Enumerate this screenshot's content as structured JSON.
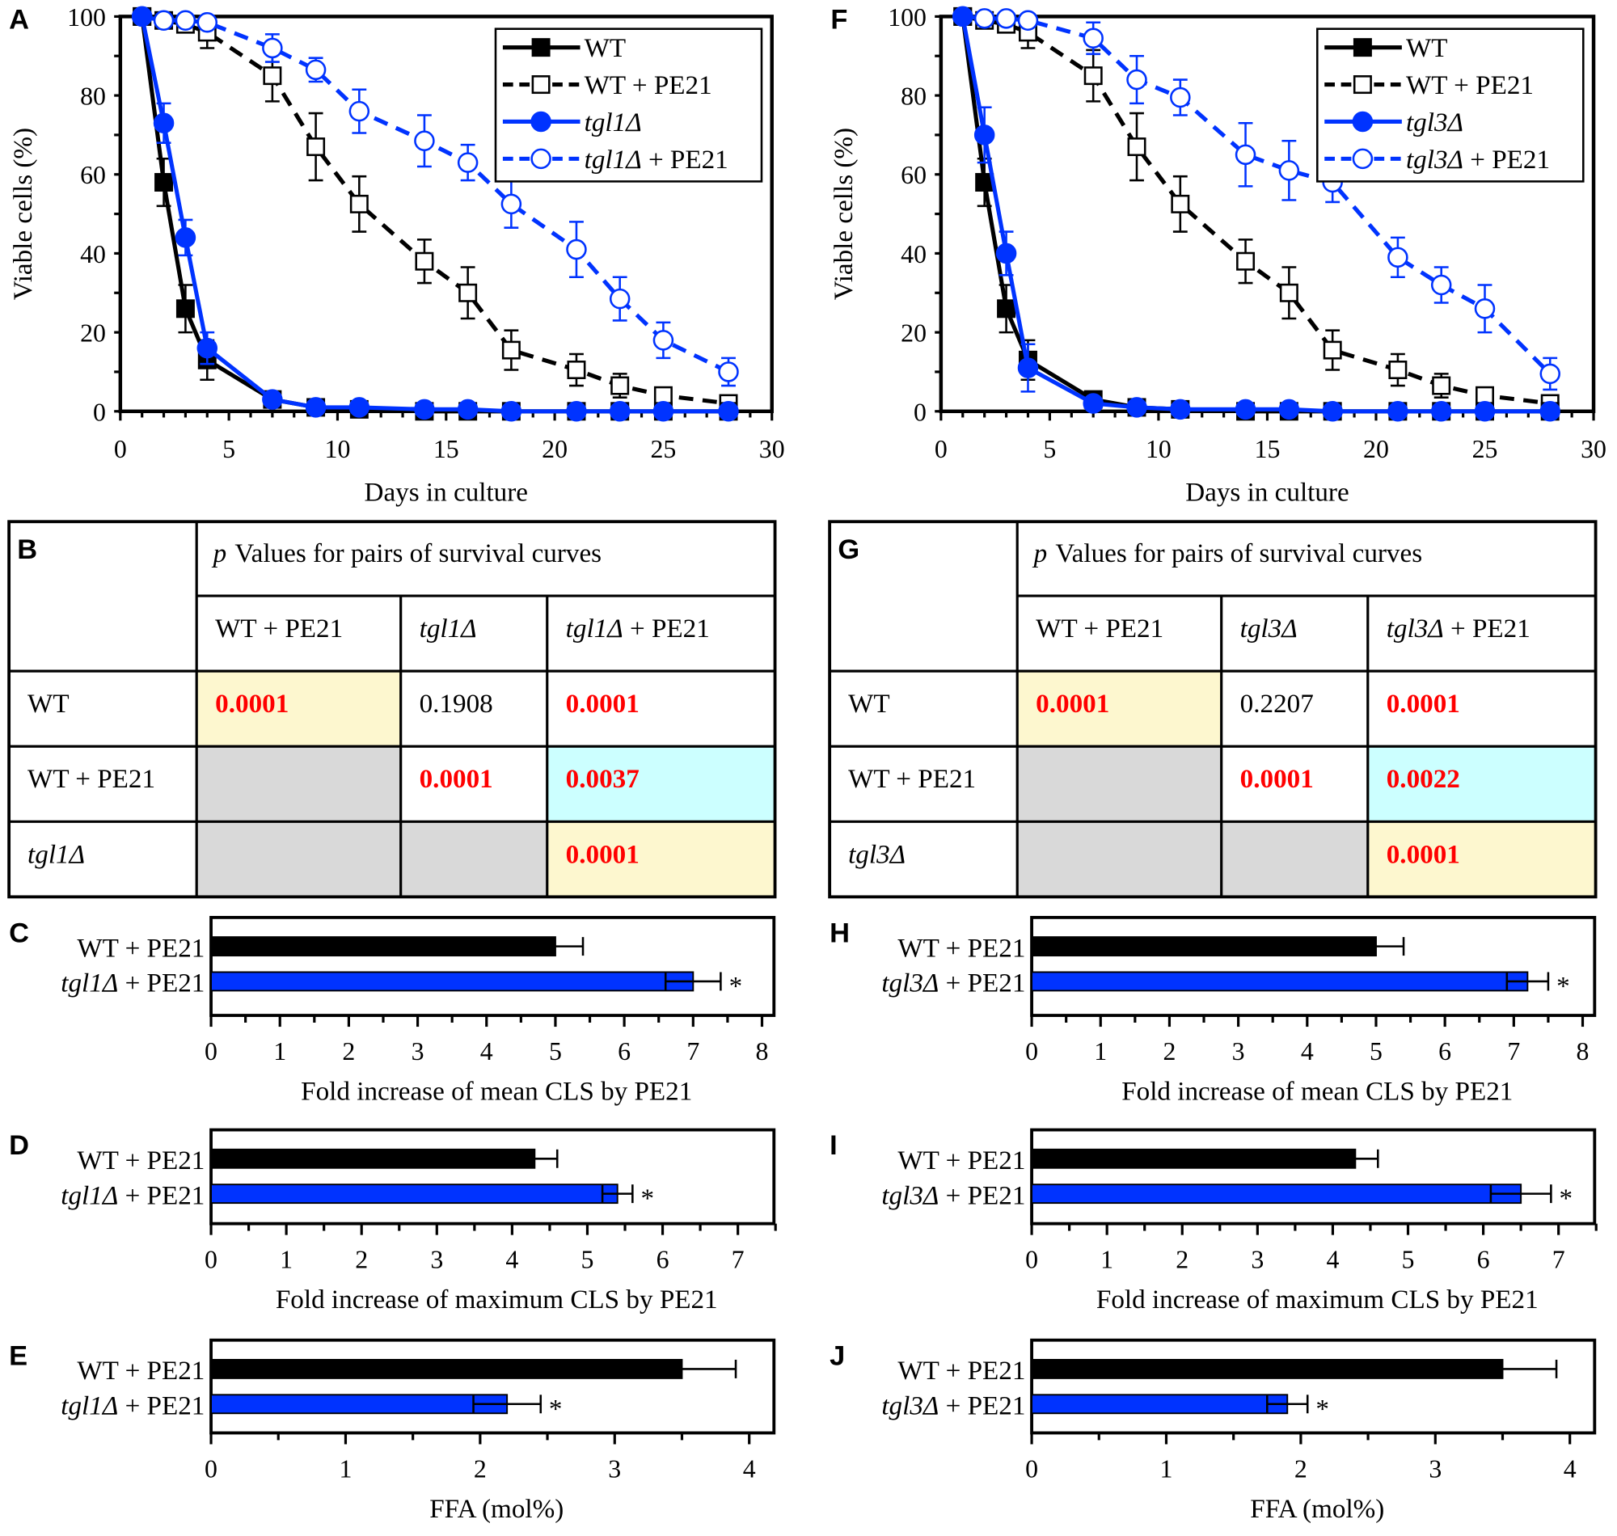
{
  "colors": {
    "blue": "#0033ff",
    "black": "#000000",
    "red": "#ff0000",
    "yellow": "#fdf7cf",
    "cyan": "#ccffff",
    "gray": "#d9d9d9"
  },
  "chart_data": [
    {
      "panel": "A",
      "type": "line",
      "xlabel": "Days in culture",
      "ylabel": "Viable cells (%)",
      "xlim": [
        0,
        30
      ],
      "ylim": [
        0,
        100
      ],
      "xticks": [
        "0",
        "5",
        "10",
        "15",
        "20",
        "25",
        "30"
      ],
      "yticks": [
        "0",
        "20",
        "40",
        "60",
        "80",
        "100"
      ],
      "x": [
        1,
        2,
        3,
        4,
        7,
        9,
        11,
        14,
        16,
        18,
        21,
        23,
        25,
        28
      ],
      "legend_position": "top-right",
      "series": [
        {
          "name": "WT",
          "color": "#000000",
          "dashed": false,
          "marker": "filled-square",
          "values": [
            100,
            58,
            26,
            13,
            3,
            1,
            0.5,
            0,
            0,
            0,
            0,
            0,
            0,
            0
          ],
          "errors": [
            0,
            6,
            6,
            5,
            1,
            1,
            0.5,
            0,
            0,
            0,
            0,
            0,
            0,
            0
          ]
        },
        {
          "name": "WT + PE21",
          "color": "#000000",
          "dashed": true,
          "marker": "open-square",
          "values": [
            100,
            99,
            98,
            96,
            85,
            67,
            52.5,
            38,
            30,
            15.5,
            10.5,
            6.5,
            4,
            2
          ],
          "errors": [
            0,
            1,
            2,
            4,
            6.5,
            8.5,
            7,
            5.5,
            6.5,
            5,
            4,
            3,
            1,
            1
          ]
        },
        {
          "name": "tgl1Δ",
          "color": "#0033ff",
          "dashed": false,
          "marker": "filled-circle",
          "values": [
            100,
            73,
            44,
            16,
            3,
            1,
            1,
            0.5,
            0.5,
            0,
            0,
            0,
            0,
            0
          ],
          "errors": [
            0,
            5,
            4.5,
            4,
            1,
            0.5,
            0.5,
            0.5,
            0.5,
            0,
            0,
            0,
            0,
            0
          ]
        },
        {
          "name": "tgl1Δ + PE21",
          "color": "#0033ff",
          "dashed": true,
          "marker": "open-circle",
          "values": [
            100,
            99,
            99,
            98.5,
            92,
            86.5,
            76,
            68.5,
            63,
            52.5,
            41,
            28.5,
            18,
            10
          ],
          "errors": [
            0,
            0.5,
            0.5,
            1,
            3.5,
            3,
            5.5,
            6.5,
            4.5,
            6,
            7,
            5.5,
            4.5,
            3.5
          ]
        }
      ]
    },
    {
      "panel": "F",
      "type": "line",
      "xlabel": "Days in culture",
      "ylabel": "Viable cells (%)",
      "xlim": [
        0,
        30
      ],
      "ylim": [
        0,
        100
      ],
      "xticks": [
        "0",
        "5",
        "10",
        "15",
        "20",
        "25",
        "30"
      ],
      "yticks": [
        "0",
        "20",
        "40",
        "60",
        "80",
        "100"
      ],
      "x": [
        1,
        2,
        3,
        4,
        7,
        9,
        11,
        14,
        16,
        18,
        21,
        23,
        25,
        28
      ],
      "legend_position": "top-right",
      "series": [
        {
          "name": "WT",
          "color": "#000000",
          "dashed": false,
          "marker": "filled-square",
          "values": [
            100,
            58,
            26,
            13,
            3,
            1,
            0.5,
            0,
            0,
            0,
            0,
            0,
            0,
            0
          ],
          "errors": [
            0,
            6,
            6,
            5,
            1,
            1,
            0.5,
            0,
            0,
            0,
            0,
            0,
            0,
            0
          ]
        },
        {
          "name": "WT + PE21",
          "color": "#000000",
          "dashed": true,
          "marker": "open-square",
          "values": [
            100,
            99,
            98,
            96,
            85,
            67,
            52.5,
            38,
            30,
            15.5,
            10.5,
            6.5,
            4,
            2
          ],
          "errors": [
            0,
            1,
            2,
            4,
            6.5,
            8.5,
            7,
            5.5,
            6.5,
            5,
            4,
            3,
            1,
            1
          ]
        },
        {
          "name": "tgl3Δ",
          "color": "#0033ff",
          "dashed": false,
          "marker": "filled-circle",
          "values": [
            100,
            70,
            40,
            11,
            2,
            1,
            0.5,
            0.5,
            0.5,
            0,
            0,
            0,
            0,
            0
          ],
          "errors": [
            0,
            7,
            5.5,
            6,
            1,
            0.5,
            0.5,
            0.5,
            0.5,
            0,
            0,
            0,
            0,
            0
          ]
        },
        {
          "name": "tgl3Δ + PE21",
          "color": "#0033ff",
          "dashed": true,
          "marker": "open-circle",
          "values": [
            100,
            99.5,
            99.5,
            99,
            94.5,
            84,
            79.5,
            65,
            61,
            58,
            39,
            32,
            26,
            9.5
          ],
          "errors": [
            0,
            0.5,
            0.5,
            0.5,
            4,
            6,
            4.5,
            8,
            7.5,
            5,
            5,
            4.5,
            6,
            4
          ]
        }
      ]
    },
    {
      "panel": "C",
      "type": "bar",
      "orientation": "horizontal",
      "xlabel": "Fold increase of mean CLS by PE21",
      "xlim": [
        0,
        8.2
      ],
      "xticks": [
        "0",
        "1",
        "2",
        "3",
        "4",
        "5",
        "6",
        "7",
        "8"
      ],
      "categories": [
        "WT + PE21",
        "tgl1Δ + PE21"
      ],
      "values": [
        5.0,
        7.0
      ],
      "errors": [
        0.4,
        0.4
      ],
      "colors": [
        "#000000",
        "#0033ff"
      ],
      "annotations": [
        "",
        "*"
      ]
    },
    {
      "panel": "D",
      "type": "bar",
      "orientation": "horizontal",
      "xlabel": "Fold increase of maximum CLS by PE21",
      "xlim": [
        0,
        7.5
      ],
      "xticks": [
        "0",
        "1",
        "2",
        "3",
        "4",
        "5",
        "6",
        "7"
      ],
      "categories": [
        "WT + PE21",
        "tgl1Δ + PE21"
      ],
      "values": [
        4.3,
        5.4
      ],
      "errors": [
        0.3,
        0.2
      ],
      "colors": [
        "#000000",
        "#0033ff"
      ],
      "annotations": [
        "",
        "*"
      ]
    },
    {
      "panel": "E",
      "type": "bar",
      "orientation": "horizontal",
      "xlabel": "FFA (mol%)",
      "xlim": [
        0,
        4.2
      ],
      "xticks": [
        "0",
        "1",
        "2",
        "3",
        "4"
      ],
      "categories": [
        "WT + PE21",
        "tgl1Δ + PE21"
      ],
      "values": [
        3.5,
        2.2
      ],
      "errors": [
        0.4,
        0.25
      ],
      "colors": [
        "#000000",
        "#0033ff"
      ],
      "annotations": [
        "",
        "*"
      ]
    },
    {
      "panel": "H",
      "type": "bar",
      "orientation": "horizontal",
      "xlabel": "Fold increase of mean CLS by PE21",
      "xlim": [
        0,
        8.2
      ],
      "xticks": [
        "0",
        "1",
        "2",
        "3",
        "4",
        "5",
        "6",
        "7",
        "8"
      ],
      "categories": [
        "WT + PE21",
        "tgl3Δ + PE21"
      ],
      "values": [
        5.0,
        7.2
      ],
      "errors": [
        0.4,
        0.3
      ],
      "colors": [
        "#000000",
        "#0033ff"
      ],
      "annotations": [
        "",
        "*"
      ]
    },
    {
      "panel": "I",
      "type": "bar",
      "orientation": "horizontal",
      "xlabel": "Fold increase of maximum CLS by PE21",
      "xlim": [
        0,
        7.5
      ],
      "xticks": [
        "0",
        "1",
        "2",
        "3",
        "4",
        "5",
        "6",
        "7"
      ],
      "categories": [
        "WT + PE21",
        "tgl3Δ + PE21"
      ],
      "values": [
        4.3,
        6.5
      ],
      "errors": [
        0.3,
        0.4
      ],
      "colors": [
        "#000000",
        "#0033ff"
      ],
      "annotations": [
        "",
        "*"
      ]
    },
    {
      "panel": "J",
      "type": "bar",
      "orientation": "horizontal",
      "xlabel": "FFA (mol%)",
      "xlim": [
        0,
        4.2
      ],
      "xticks": [
        "0",
        "1",
        "2",
        "3",
        "4"
      ],
      "categories": [
        "WT + PE21",
        "tgl3Δ + PE21"
      ],
      "values": [
        3.5,
        1.9
      ],
      "errors": [
        0.4,
        0.15
      ],
      "colors": [
        "#000000",
        "#0033ff"
      ],
      "annotations": [
        "",
        "*"
      ]
    }
  ],
  "tables": [
    {
      "panel": "B",
      "p_label": "p",
      "header": "Values for pairs of survival curves",
      "columns": [
        "WT + PE21",
        "tgl1Δ",
        "tgl1Δ + PE21"
      ],
      "rows": [
        {
          "label": "WT",
          "cells": [
            {
              "value": "0.0001",
              "fill": "yellow",
              "significant": true
            },
            {
              "value": "0.1908",
              "fill": "white",
              "significant": false
            },
            {
              "value": "0.0001",
              "fill": "white",
              "significant": true
            }
          ]
        },
        {
          "label": "WT + PE21",
          "cells": [
            {
              "value": "",
              "fill": "gray",
              "significant": false
            },
            {
              "value": "0.0001",
              "fill": "white",
              "significant": true
            },
            {
              "value": "0.0037",
              "fill": "cyan",
              "significant": true
            }
          ]
        },
        {
          "label": "tgl1Δ",
          "cells": [
            {
              "value": "",
              "fill": "gray",
              "significant": false
            },
            {
              "value": "",
              "fill": "gray",
              "significant": false
            },
            {
              "value": "0.0001",
              "fill": "yellow",
              "significant": true
            }
          ]
        }
      ]
    },
    {
      "panel": "G",
      "p_label": "p",
      "header": "Values for pairs of survival curves",
      "columns": [
        "WT + PE21",
        "tgl3Δ",
        "tgl3Δ + PE21"
      ],
      "rows": [
        {
          "label": "WT",
          "cells": [
            {
              "value": "0.0001",
              "fill": "yellow",
              "significant": true
            },
            {
              "value": "0.2207",
              "fill": "white",
              "significant": false
            },
            {
              "value": "0.0001",
              "fill": "white",
              "significant": true
            }
          ]
        },
        {
          "label": "WT + PE21",
          "cells": [
            {
              "value": "",
              "fill": "gray",
              "significant": false
            },
            {
              "value": "0.0001",
              "fill": "white",
              "significant": true
            },
            {
              "value": "0.0022",
              "fill": "cyan",
              "significant": true
            }
          ]
        },
        {
          "label": "tgl3Δ",
          "cells": [
            {
              "value": "",
              "fill": "gray",
              "significant": false
            },
            {
              "value": "",
              "fill": "gray",
              "significant": false
            },
            {
              "value": "0.0001",
              "fill": "yellow",
              "significant": true
            }
          ]
        }
      ]
    }
  ]
}
